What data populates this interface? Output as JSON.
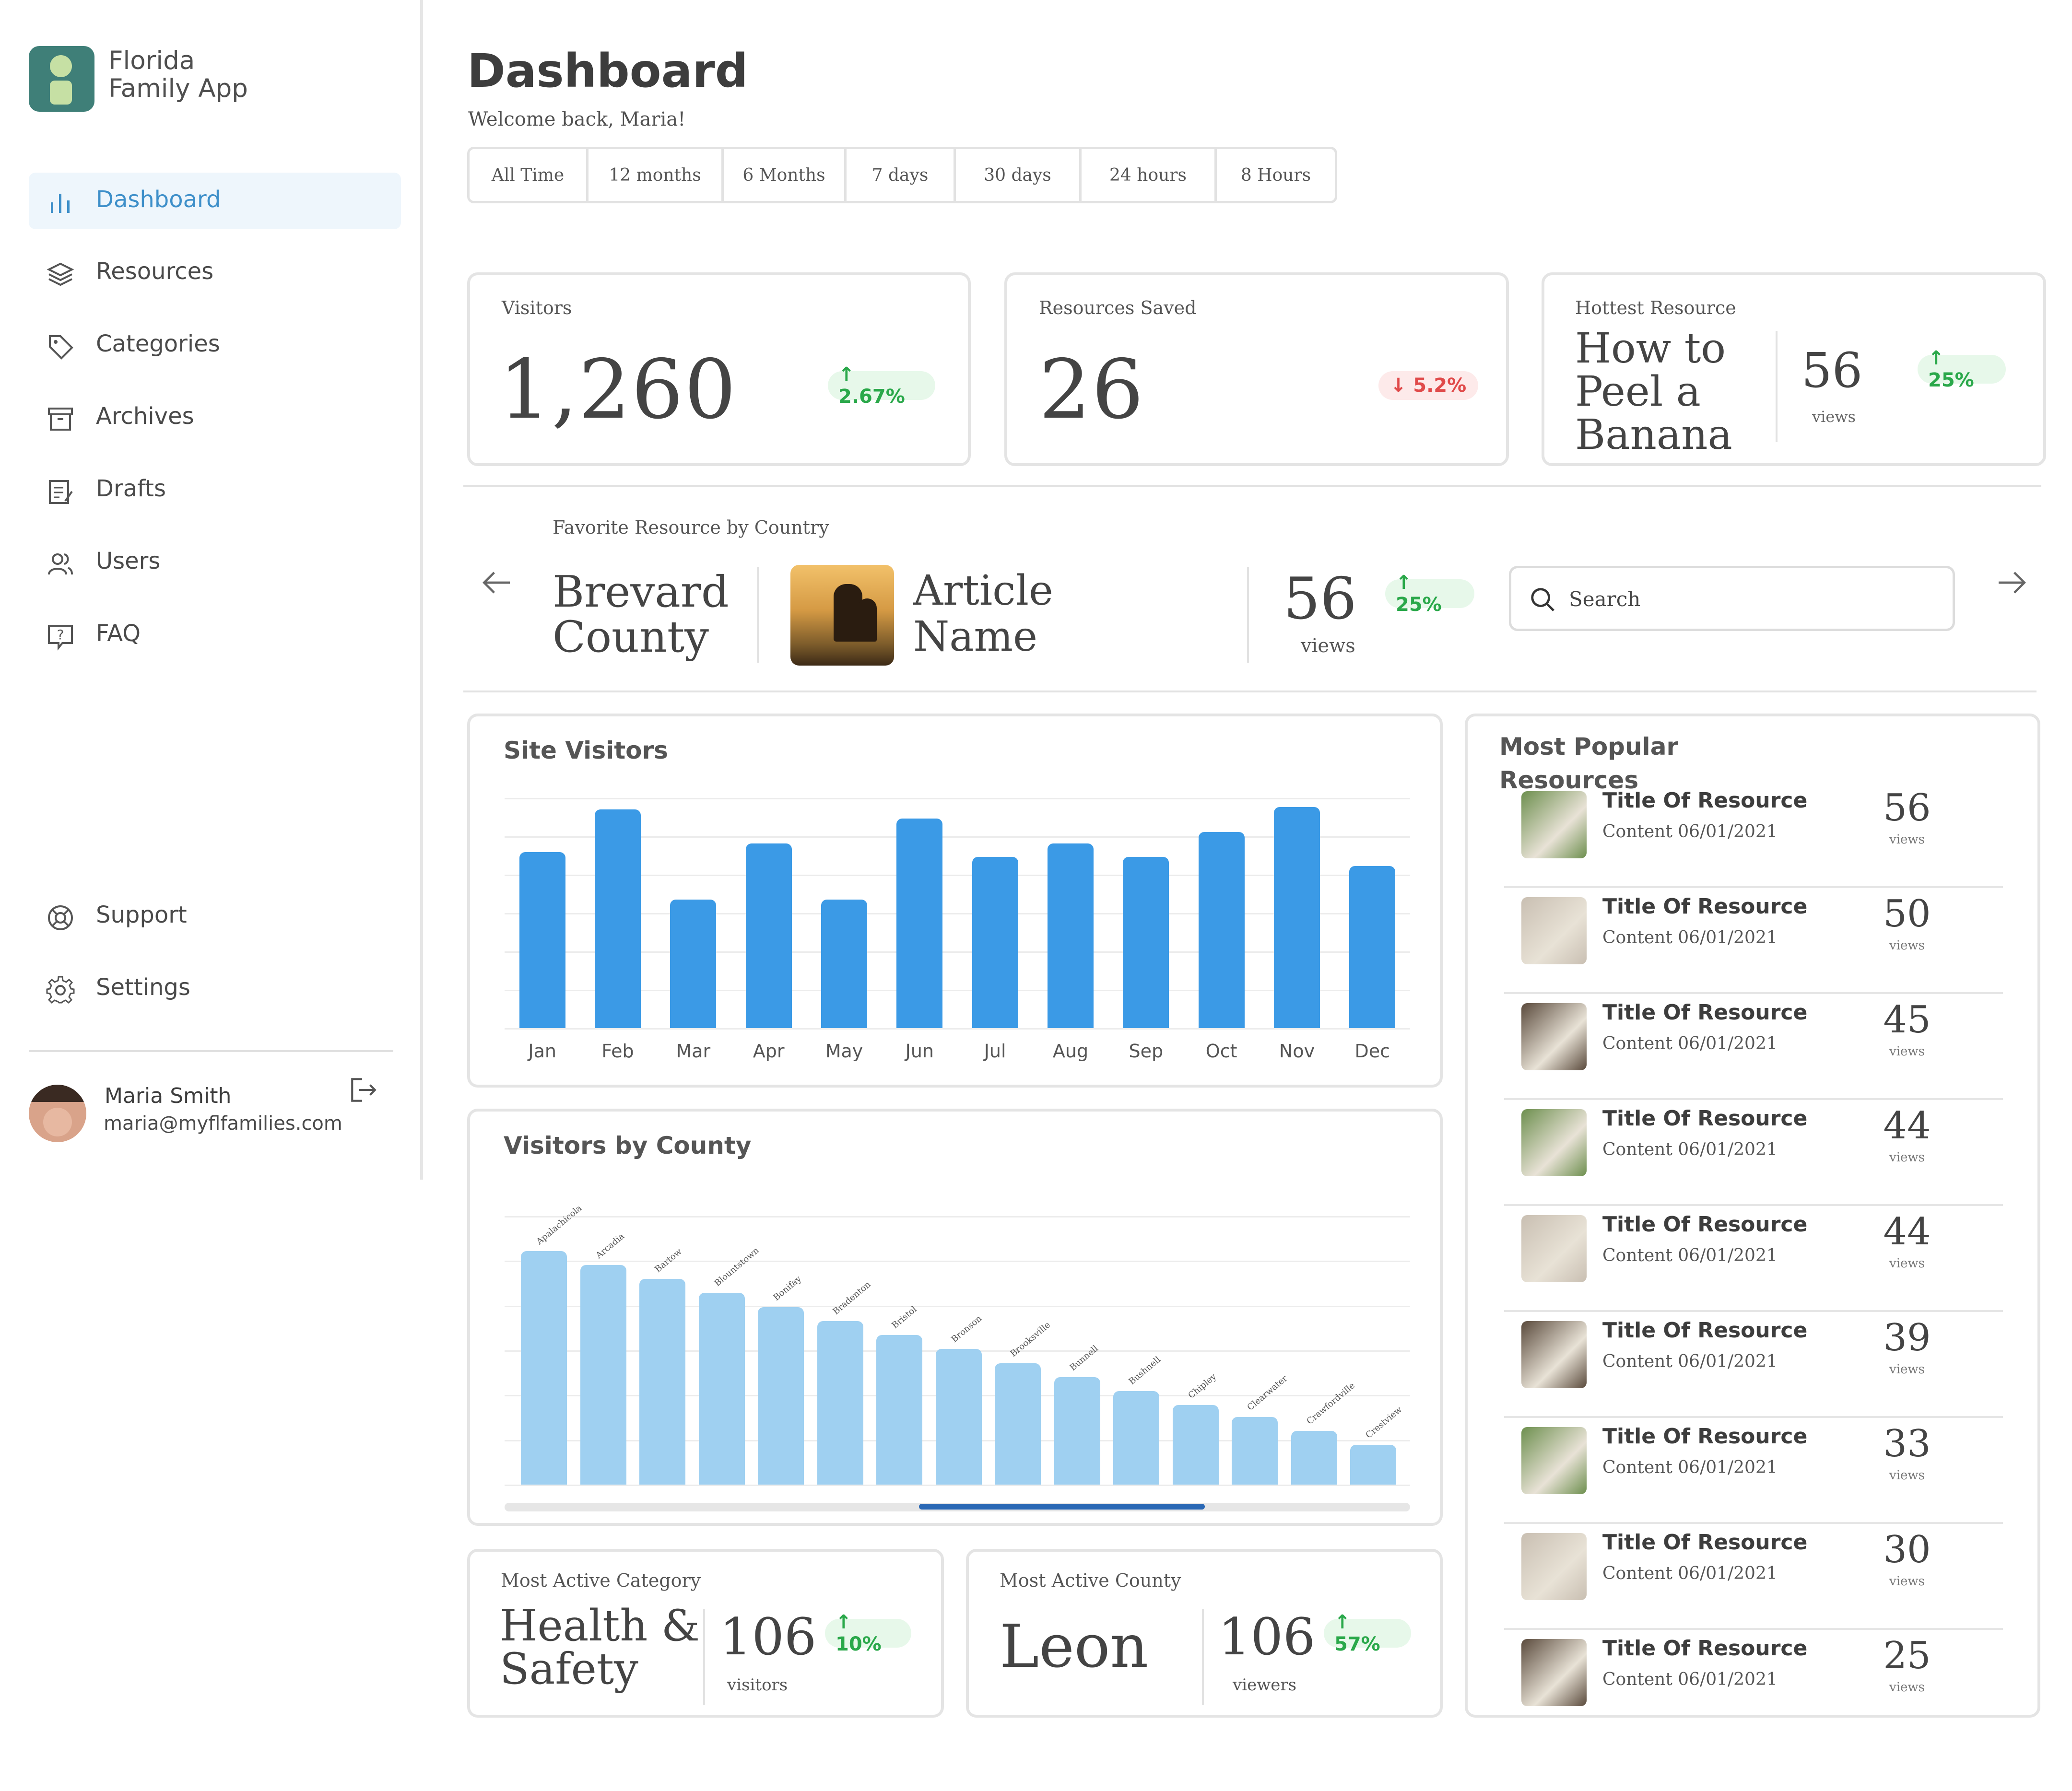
{
  "app": {
    "name_line1": "Florida",
    "name_line2": "Family App"
  },
  "sidebar": {
    "items": [
      {
        "label": "Dashboard",
        "icon": "bar-chart-icon",
        "active": true
      },
      {
        "label": "Resources",
        "icon": "layers-icon"
      },
      {
        "label": "Categories",
        "icon": "tag-icon"
      },
      {
        "label": "Archives",
        "icon": "archive-icon"
      },
      {
        "label": "Drafts",
        "icon": "drafts-icon"
      },
      {
        "label": "Users",
        "icon": "users-icon"
      },
      {
        "label": "FAQ",
        "icon": "help-icon"
      }
    ],
    "bottom_items": [
      {
        "label": "Support",
        "icon": "lifebuoy-icon"
      },
      {
        "label": "Settings",
        "icon": "gear-icon"
      }
    ],
    "user": {
      "name": "Maria Smith",
      "email": "maria@myflfamilies.com"
    }
  },
  "header": {
    "title": "Dashboard",
    "welcome": "Welcome back, Maria!",
    "ranges": [
      "All Time",
      "12 months",
      "6 Months",
      "7 days",
      "30 days",
      "24 hours",
      "8 Hours"
    ]
  },
  "stats": {
    "visitors": {
      "label": "Visitors",
      "value": "1,260",
      "change": "↑ 2.67%"
    },
    "saved": {
      "label": "Resources Saved",
      "value": "26",
      "change": "↓ 5.2%"
    },
    "hottest": {
      "label": "Hottest Resource",
      "title_line1": "How to",
      "title_line2": "Peel a",
      "title_line3": "Banana",
      "value": "56",
      "unit": "views",
      "change": "↑ 25%"
    }
  },
  "favorite": {
    "label": "Favorite Resource by Country",
    "county_line1": "Brevard",
    "county_line2": "County",
    "article_line1": "Article",
    "article_line2": "Name",
    "value": "56",
    "unit": "views",
    "change": "↑ 25%",
    "search_placeholder": "Search"
  },
  "site_visitors": {
    "title": "Site Visitors"
  },
  "visitors_by_county": {
    "title": "Visitors by County",
    "scroll_position": 0.5
  },
  "chart_data": [
    {
      "type": "bar",
      "title": "Site Visitors",
      "categories": [
        "Jan",
        "Feb",
        "Mar",
        "Apr",
        "May",
        "Jun",
        "Jul",
        "Aug",
        "Sep",
        "Oct",
        "Nov",
        "Dec"
      ],
      "values": [
        78,
        97,
        57,
        82,
        57,
        93,
        76,
        82,
        76,
        87,
        98,
        72
      ],
      "ylim": [
        0,
        100
      ],
      "grid": true
    },
    {
      "type": "bar",
      "title": "Visitors by County",
      "categories": [
        "Apalachicola",
        "Arcadia",
        "Bartow",
        "Blountstown",
        "Bonifay",
        "Bradenton",
        "Bristol",
        "Bronson",
        "Brooksville",
        "Bunnell",
        "Bushnell",
        "Chipley",
        "Clearwater",
        "Crawfordville",
        "Crestview"
      ],
      "values": [
        100,
        94,
        88,
        82,
        76,
        70,
        64,
        58,
        52,
        46,
        40,
        34,
        29,
        23,
        17
      ],
      "ylim": [
        0,
        110
      ],
      "grid": true
    }
  ],
  "active": {
    "category": {
      "label": "Most Active Category",
      "name_line1": "Health &",
      "name_line2": "Safety",
      "value": "106",
      "unit": "visitors",
      "change": "↑ 10%"
    },
    "county": {
      "label": "Most Active County",
      "name": "Leon",
      "value": "106",
      "unit": "viewers",
      "change": "↑ 57%"
    }
  },
  "popular": {
    "title_line1": "Most Popular",
    "title_line2": "Resources",
    "items": [
      {
        "title": "Title Of Resource",
        "sub": "Content   06/01/2021",
        "value": "56",
        "unit": "views",
        "thumb": "#6d8f4e"
      },
      {
        "title": "Title Of Resource",
        "sub": "Content   06/01/2021",
        "value": "50",
        "unit": "views",
        "thumb": "#c9bfb2"
      },
      {
        "title": "Title Of Resource",
        "sub": "Content   06/01/2021",
        "value": "45",
        "unit": "views",
        "thumb": "#5a4a3c"
      },
      {
        "title": "Title Of Resource",
        "sub": "Content   06/01/2021",
        "value": "44",
        "unit": "views",
        "thumb": "#6d8f4e"
      },
      {
        "title": "Title Of Resource",
        "sub": "Content   06/01/2021",
        "value": "44",
        "unit": "views",
        "thumb": "#c9bfb2"
      },
      {
        "title": "Title Of Resource",
        "sub": "Content   06/01/2021",
        "value": "39",
        "unit": "views",
        "thumb": "#5a4a3c"
      },
      {
        "title": "Title Of Resource",
        "sub": "Content   06/01/2021",
        "value": "33",
        "unit": "views",
        "thumb": "#6d8f4e"
      },
      {
        "title": "Title Of Resource",
        "sub": "Content   06/01/2021",
        "value": "30",
        "unit": "views",
        "thumb": "#c9bfb2"
      },
      {
        "title": "Title Of Resource",
        "sub": "Content   06/01/2021",
        "value": "25",
        "unit": "views",
        "thumb": "#5a4a3c"
      }
    ]
  },
  "colors": {
    "accent": "#3d8fc9",
    "bar": "#3b9ae6",
    "bar_light": "#9fd0f1",
    "brand": "#3f7f78",
    "up": "#2aa84a",
    "down": "#e04a4a"
  }
}
